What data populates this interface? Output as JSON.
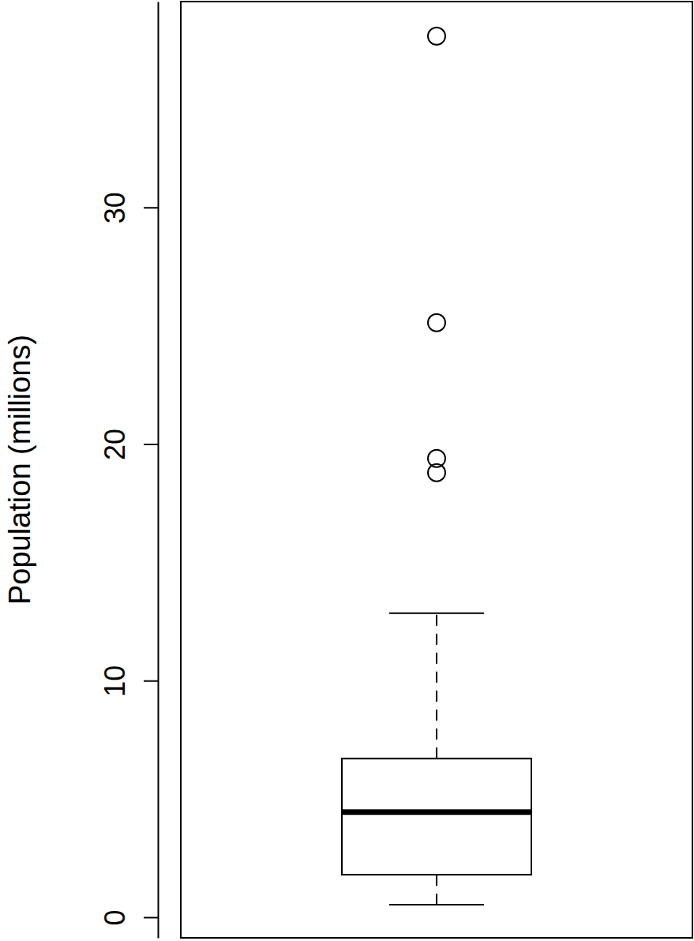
{
  "chart_data": {
    "type": "box",
    "ylabel": "Population (millions)",
    "ylim": [
      -0.87,
      38.7
    ],
    "yticks": [
      0,
      10,
      20,
      30
    ],
    "boxes": [
      {
        "whisker_low": 0.53,
        "q1": 1.8,
        "median": 4.44,
        "q3": 6.71,
        "whisker_high": 12.85,
        "outliers": [
          37.24,
          25.13,
          19.39,
          18.79
        ]
      }
    ]
  }
}
